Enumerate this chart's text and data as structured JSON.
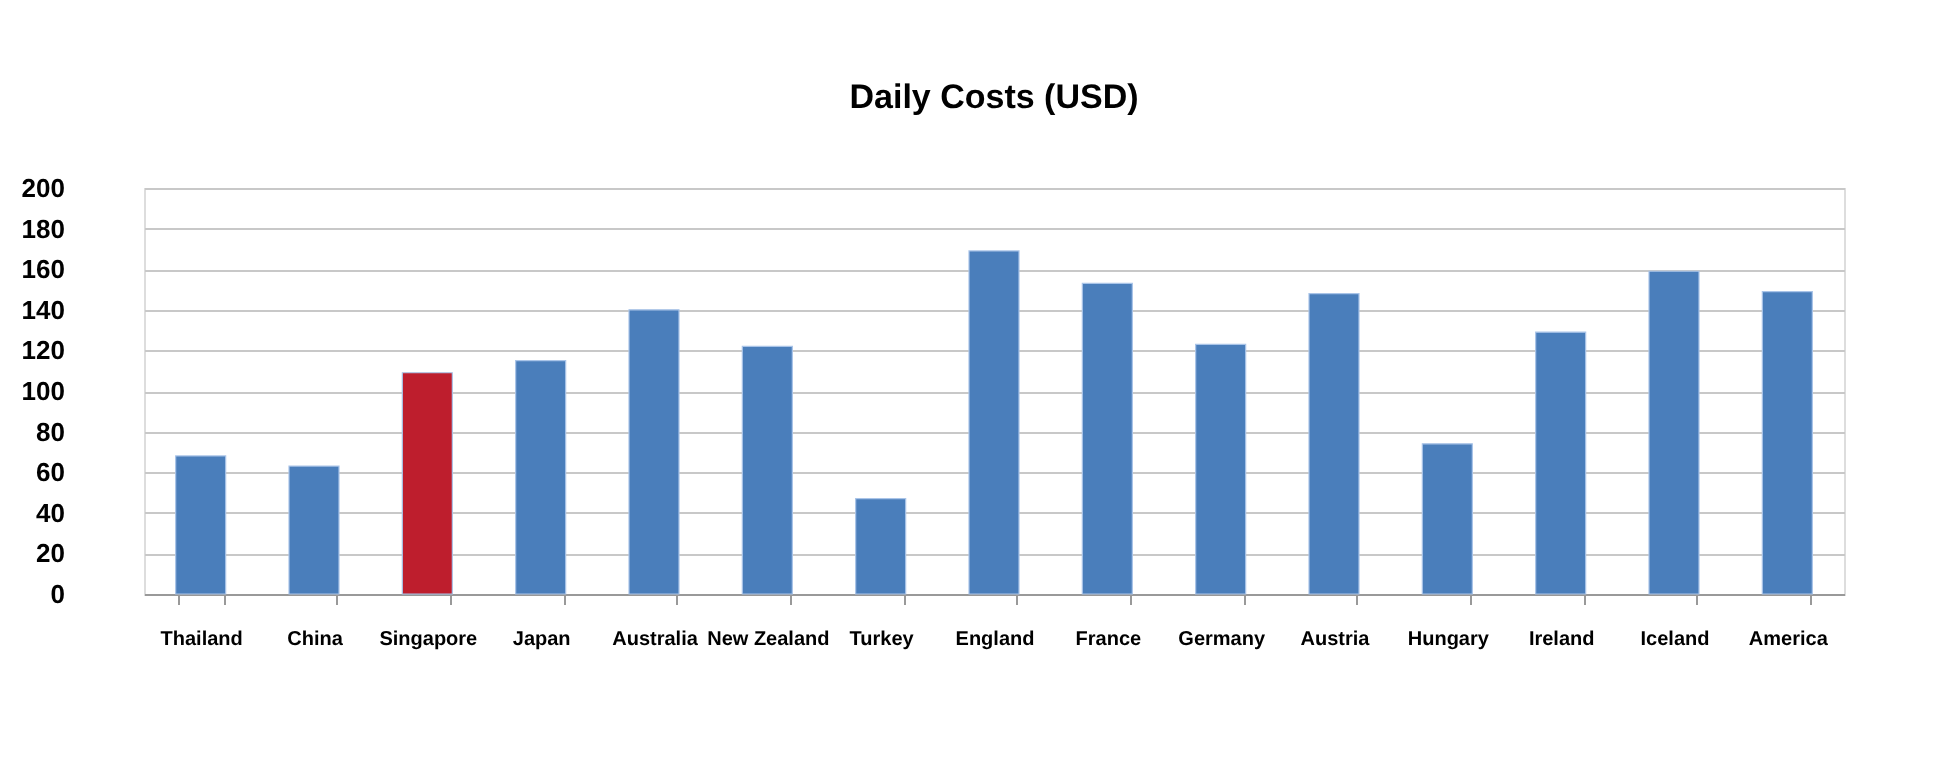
{
  "chart_data": {
    "type": "bar",
    "title": "Daily  Costs  (USD)",
    "categories": [
      "Thailand",
      "China",
      "Singapore",
      "Japan",
      "Australia",
      "New Zealand",
      "Turkey",
      "England",
      "France",
      "Germany",
      "Austria",
      "Hungary",
      "Ireland",
      "Iceland",
      "America"
    ],
    "values": [
      68,
      63,
      109,
      115,
      140,
      122,
      47,
      169,
      153,
      123,
      148,
      74,
      129,
      159,
      149
    ],
    "colors": [
      "#4a7ebb",
      "#4a7ebb",
      "#be1e2d",
      "#4a7ebb",
      "#4a7ebb",
      "#4a7ebb",
      "#4a7ebb",
      "#4a7ebb",
      "#4a7ebb",
      "#4a7ebb",
      "#4a7ebb",
      "#4a7ebb",
      "#4a7ebb",
      "#4a7ebb",
      "#4a7ebb"
    ],
    "ylim": [
      0,
      200
    ],
    "yticks": [
      0,
      20,
      40,
      60,
      80,
      100,
      120,
      140,
      160,
      180,
      200
    ],
    "grid": "y"
  }
}
